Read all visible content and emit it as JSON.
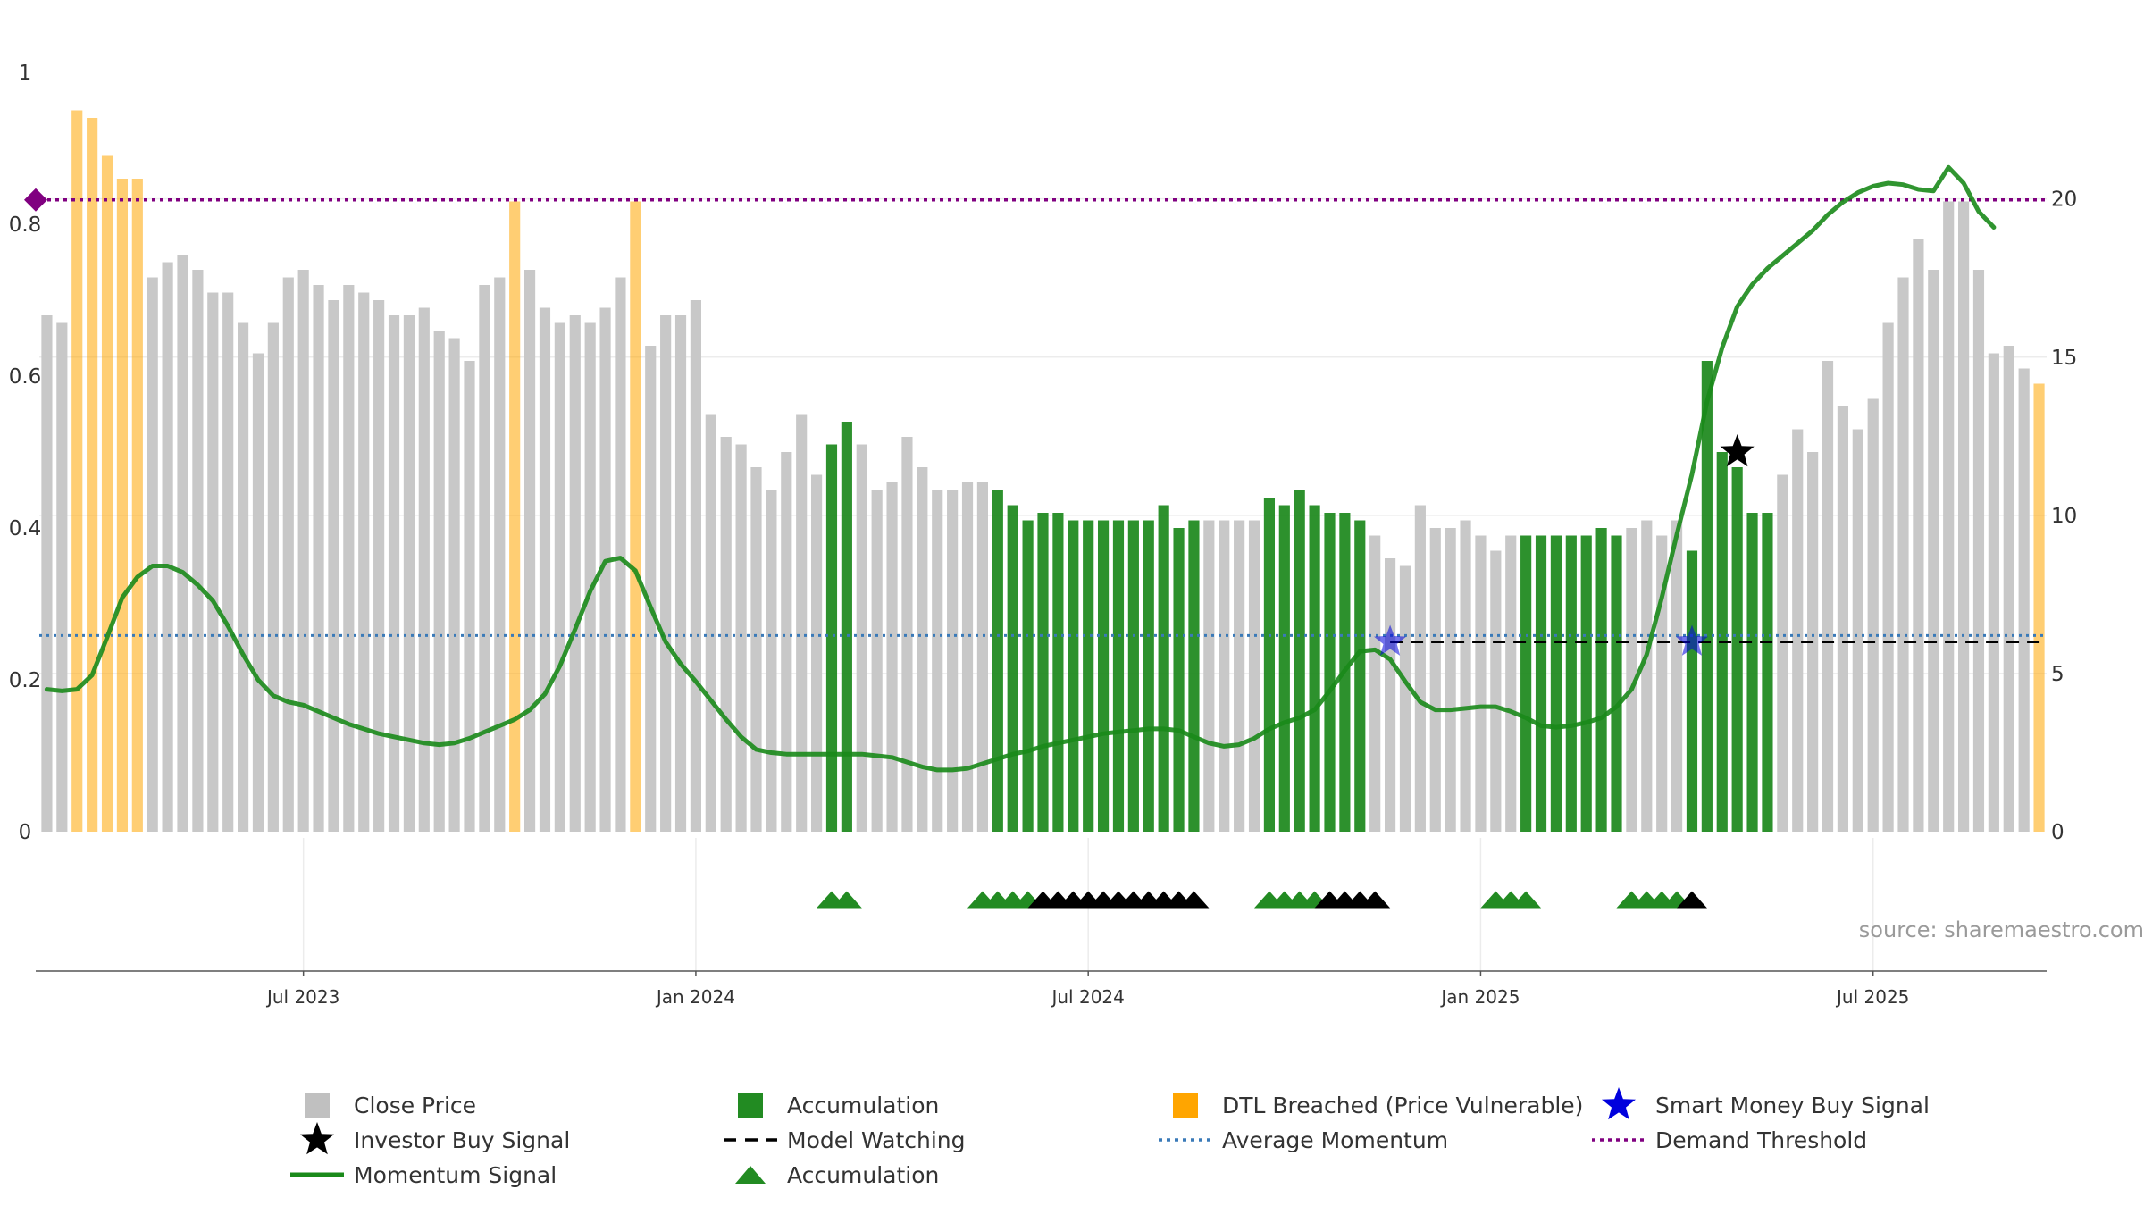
{
  "chart_data": {
    "type": "bar",
    "x_axis": {
      "tick_labels": [
        "Jul 2023",
        "Jan 2024",
        "Jul 2024",
        "Jan 2025",
        "Jul 2025"
      ]
    },
    "y_left": {
      "range": [
        0,
        1
      ],
      "tick_labels": [
        "0",
        "0.2",
        "0.4",
        "0.6",
        "0.8",
        "1"
      ]
    },
    "y_right": {
      "range": [
        0,
        24
      ],
      "tick_labels": [
        "0",
        "5",
        "10",
        "15",
        "20"
      ]
    },
    "grid": true,
    "source": "source: sharemaestro.com",
    "close_price": {
      "values": [
        0.68,
        0.67,
        0.95,
        0.94,
        0.89,
        0.86,
        0.86,
        0.73,
        0.75,
        0.76,
        0.74,
        0.71,
        0.71,
        0.67,
        0.63,
        0.67,
        0.73,
        0.74,
        0.72,
        0.7,
        0.72,
        0.71,
        0.7,
        0.68,
        0.68,
        0.69,
        0.66,
        0.65,
        0.62,
        0.72,
        0.73,
        0.83,
        0.74,
        0.69,
        0.67,
        0.68,
        0.67,
        0.69,
        0.73,
        0.83,
        0.64,
        0.68,
        0.68,
        0.7,
        0.55,
        0.52,
        0.51,
        0.48,
        0.45,
        0.5,
        0.55,
        0.47,
        0.51,
        0.54,
        0.51,
        0.45,
        0.46,
        0.52,
        0.48,
        0.45,
        0.45,
        0.46,
        0.46,
        0.45,
        0.43,
        0.41,
        0.42,
        0.42,
        0.41,
        0.41,
        0.41,
        0.41,
        0.41,
        0.41,
        0.43,
        0.4,
        0.41,
        0.41,
        0.41,
        0.41,
        0.41,
        0.44,
        0.43,
        0.45,
        0.43,
        0.42,
        0.42,
        0.41,
        0.39,
        0.36,
        0.35,
        0.43,
        0.4,
        0.4,
        0.41,
        0.39,
        0.37,
        0.39,
        0.39,
        0.39,
        0.39,
        0.39,
        0.39,
        0.4,
        0.39,
        0.4,
        0.41,
        0.39,
        0.41,
        0.37,
        0.62,
        0.5,
        0.48,
        0.42,
        0.42,
        0.47,
        0.53,
        0.5,
        0.62,
        0.56,
        0.53,
        0.57,
        0.67,
        0.73,
        0.78,
        0.74,
        0.83,
        0.83,
        0.74,
        0.63,
        0.64,
        0.61,
        0.59
      ],
      "states": [
        "g",
        "g",
        "o",
        "o",
        "o",
        "o",
        "o",
        "g",
        "g",
        "g",
        "g",
        "g",
        "g",
        "g",
        "g",
        "g",
        "g",
        "g",
        "g",
        "g",
        "g",
        "g",
        "g",
        "g",
        "g",
        "g",
        "g",
        "g",
        "g",
        "g",
        "g",
        "o",
        "g",
        "g",
        "g",
        "g",
        "g",
        "g",
        "g",
        "o",
        "g",
        "g",
        "g",
        "g",
        "g",
        "g",
        "g",
        "g",
        "g",
        "g",
        "g",
        "g",
        "a",
        "a",
        "g",
        "g",
        "g",
        "g",
        "g",
        "g",
        "g",
        "g",
        "g",
        "a",
        "a",
        "a",
        "a",
        "a",
        "a",
        "a",
        "a",
        "a",
        "a",
        "a",
        "a",
        "a",
        "a",
        "g",
        "g",
        "g",
        "g",
        "a",
        "a",
        "a",
        "a",
        "a",
        "a",
        "a",
        "g",
        "g",
        "g",
        "g",
        "g",
        "g",
        "g",
        "g",
        "g",
        "g",
        "a",
        "a",
        "a",
        "a",
        "a",
        "a",
        "a",
        "g",
        "g",
        "g",
        "g",
        "a",
        "a",
        "a",
        "a",
        "a",
        "a",
        "g",
        "g",
        "g",
        "g",
        "g",
        "g",
        "g",
        "g",
        "g",
        "g",
        "g",
        "g",
        "g",
        "g",
        "g",
        "g",
        "g",
        "o",
        "o",
        "g",
        "g",
        "g",
        "g",
        "g"
      ]
    },
    "momentum_signal": {
      "values": [
        4.5,
        4.45,
        4.5,
        4.95,
        6.15,
        7.4,
        8.05,
        8.4,
        8.4,
        8.2,
        7.8,
        7.3,
        6.5,
        5.6,
        4.8,
        4.3,
        4.1,
        4.0,
        3.8,
        3.6,
        3.4,
        3.25,
        3.1,
        3.0,
        2.9,
        2.8,
        2.75,
        2.8,
        2.95,
        3.15,
        3.35,
        3.55,
        3.85,
        4.35,
        5.25,
        6.4,
        7.6,
        8.55,
        8.65,
        8.25,
        7.1,
        6.0,
        5.3,
        4.75,
        4.15,
        3.55,
        3.0,
        2.6,
        2.5,
        2.45,
        2.45,
        2.45,
        2.45,
        2.45,
        2.45,
        2.4,
        2.35,
        2.2,
        2.05,
        1.95,
        1.95,
        2.0,
        2.15,
        2.3,
        2.45,
        2.55,
        2.7,
        2.8,
        2.9,
        3.0,
        3.1,
        3.15,
        3.2,
        3.25,
        3.25,
        3.2,
        3.0,
        2.8,
        2.7,
        2.75,
        2.95,
        3.25,
        3.45,
        3.6,
        3.85,
        4.45,
        5.1,
        5.7,
        5.75,
        5.45,
        4.75,
        4.1,
        3.85,
        3.85,
        3.9,
        3.95,
        3.95,
        3.8,
        3.6,
        3.35,
        3.3,
        3.35,
        3.45,
        3.6,
        3.95,
        4.5,
        5.6,
        7.4,
        9.4,
        11.3,
        13.6,
        15.3,
        16.6,
        17.3,
        17.8,
        18.2,
        18.6,
        19.0,
        19.5,
        19.9,
        20.2,
        20.4,
        20.5,
        20.45,
        20.3,
        20.25,
        21.0,
        20.5,
        19.6,
        19.1
      ]
    },
    "average_momentum": 6.2,
    "demand_threshold": 0.832,
    "model_watching": {
      "start_index": 89,
      "value": 0.25
    },
    "smart_money_buy_signal": [
      {
        "index": 89,
        "value": 0.25
      },
      {
        "index": 109,
        "value": 0.25
      }
    ],
    "investor_buy_signal": [
      {
        "index": 112,
        "value": 0.5
      }
    ],
    "accumulation_markers": [
      {
        "index": 52,
        "color": "green"
      },
      {
        "index": 53,
        "color": "green"
      },
      {
        "index": 62,
        "color": "green"
      },
      {
        "index": 63,
        "color": "green"
      },
      {
        "index": 64,
        "color": "green"
      },
      {
        "index": 65,
        "color": "green"
      },
      {
        "index": 66,
        "color": "black"
      },
      {
        "index": 67,
        "color": "black"
      },
      {
        "index": 68,
        "color": "black"
      },
      {
        "index": 69,
        "color": "black"
      },
      {
        "index": 70,
        "color": "black"
      },
      {
        "index": 71,
        "color": "black"
      },
      {
        "index": 72,
        "color": "black"
      },
      {
        "index": 73,
        "color": "black"
      },
      {
        "index": 74,
        "color": "black"
      },
      {
        "index": 75,
        "color": "black"
      },
      {
        "index": 76,
        "color": "black"
      },
      {
        "index": 81,
        "color": "green"
      },
      {
        "index": 82,
        "color": "green"
      },
      {
        "index": 83,
        "color": "green"
      },
      {
        "index": 84,
        "color": "green"
      },
      {
        "index": 85,
        "color": "black"
      },
      {
        "index": 86,
        "color": "black"
      },
      {
        "index": 87,
        "color": "black"
      },
      {
        "index": 88,
        "color": "black"
      },
      {
        "index": 96,
        "color": "green"
      },
      {
        "index": 97,
        "color": "green"
      },
      {
        "index": 98,
        "color": "green"
      },
      {
        "index": 105,
        "color": "green"
      },
      {
        "index": 106,
        "color": "green"
      },
      {
        "index": 107,
        "color": "green"
      },
      {
        "index": 108,
        "color": "green"
      },
      {
        "index": 109,
        "color": "black"
      }
    ],
    "colors": {
      "close_price": "#c8c8c8",
      "accumulation": "#228b22",
      "dtl_breached": "#ffa500",
      "momentum": "#1a8a1a",
      "average_momentum": "#3a7ab8",
      "demand_threshold": "#800080",
      "smart_money": "#0000dd",
      "investor": "#000000",
      "model_watching": "#000000"
    },
    "legend": {
      "placement": "bottom",
      "items": [
        {
          "key": "close",
          "label": "Close Price",
          "symbol": "square",
          "color": "#c0c0c0"
        },
        {
          "key": "acc_bar",
          "label": "Accumulation",
          "symbol": "square",
          "color": "#228b22"
        },
        {
          "key": "dtl",
          "label": "DTL Breached (Price Vulnerable)",
          "symbol": "square",
          "color": "#ffa500"
        },
        {
          "key": "smart",
          "label": "Smart Money Buy Signal",
          "symbol": "star",
          "color": "#0000dd"
        },
        {
          "key": "investor",
          "label": "Investor Buy Signal",
          "symbol": "star",
          "color": "#000000"
        },
        {
          "key": "watch",
          "label": "Model Watching",
          "symbol": "dash",
          "color": "#000000"
        },
        {
          "key": "avg",
          "label": "Average Momentum",
          "symbol": "dot",
          "color": "#3a7ab8"
        },
        {
          "key": "demand",
          "label": "Demand Threshold",
          "symbol": "dot",
          "color": "#800080"
        },
        {
          "key": "mom",
          "label": "Momentum Signal",
          "symbol": "line",
          "color": "#1a8a1a"
        },
        {
          "key": "acc_tri",
          "label": "Accumulation",
          "symbol": "triangle",
          "color": "#228b22"
        }
      ]
    }
  }
}
